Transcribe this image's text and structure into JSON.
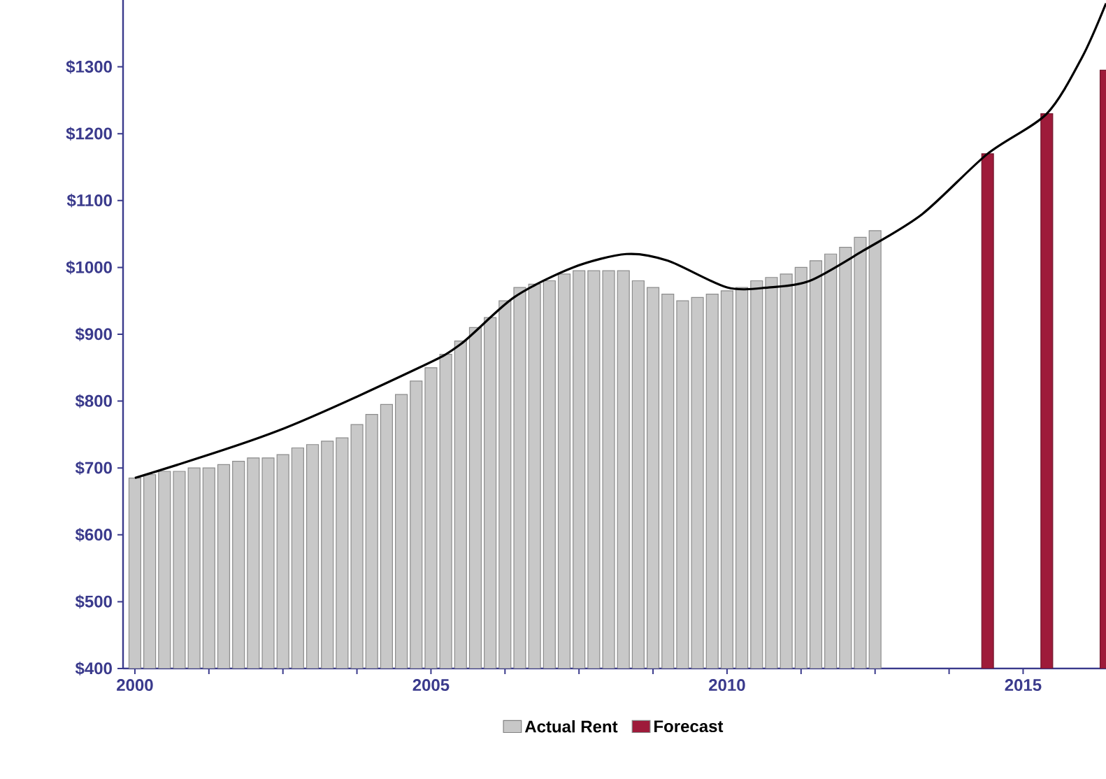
{
  "chart_data": {
    "type": "bar",
    "legend": "bottom",
    "xlim": [
      1999.8,
      2016.4
    ],
    "ylim": [
      400,
      1400
    ],
    "xticks": [
      2000,
      2005,
      2010,
      2015
    ],
    "yticks": [
      {
        "value": 400,
        "label": "$400"
      },
      {
        "value": 500,
        "label": "$500"
      },
      {
        "value": 600,
        "label": "$600"
      },
      {
        "value": 700,
        "label": "$700"
      },
      {
        "value": 800,
        "label": "$800"
      },
      {
        "value": 900,
        "label": "$900"
      },
      {
        "value": 1000,
        "label": "$1000"
      },
      {
        "value": 1100,
        "label": "$1100"
      },
      {
        "value": 1200,
        "label": "$1200"
      },
      {
        "value": 1300,
        "label": "$1300"
      }
    ],
    "series": [
      {
        "name": "Actual Rent",
        "color": "#c8c8c8",
        "x": [
          2000,
          2000.25,
          2000.5,
          2000.75,
          2001,
          2001.25,
          2001.5,
          2001.75,
          2002,
          2002.25,
          2002.5,
          2002.75,
          2003,
          2003.25,
          2003.5,
          2003.75,
          2004,
          2004.25,
          2004.5,
          2004.75,
          2005,
          2005.25,
          2005.5,
          2005.75,
          2006,
          2006.25,
          2006.5,
          2006.75,
          2007,
          2007.25,
          2007.5,
          2007.75,
          2008,
          2008.25,
          2008.5,
          2008.75,
          2009,
          2009.25,
          2009.5,
          2009.75,
          2010,
          2010.25,
          2010.5,
          2010.75,
          2011,
          2011.25,
          2011.5,
          2011.75,
          2012,
          2012.25,
          2012.5
        ],
        "values": [
          685,
          690,
          695,
          695,
          700,
          700,
          705,
          710,
          715,
          715,
          720,
          730,
          735,
          740,
          745,
          765,
          780,
          795,
          810,
          830,
          850,
          870,
          890,
          910,
          925,
          950,
          970,
          975,
          980,
          990,
          995,
          995,
          995,
          995,
          980,
          970,
          960,
          950,
          955,
          960,
          965,
          970,
          980,
          985,
          990,
          1000,
          1010,
          1020,
          1030,
          1045,
          1055
        ]
      },
      {
        "name": "Forecast",
        "color": "#9e1b3a",
        "x": [
          2014.4,
          2015.4,
          2016.4
        ],
        "values": [
          1170,
          1230,
          1295
        ]
      },
      {
        "type": "line",
        "color": "#000000",
        "x": [
          2000,
          2002.4,
          2004.8,
          2005.5,
          2006.4,
          2007.4,
          2008.3,
          2009,
          2010,
          2010.7,
          2011.4,
          2012.3,
          2013.3,
          2014.4,
          2015.4,
          2016,
          2016.4
        ],
        "values": [
          685,
          755,
          850,
          885,
          955,
          1000,
          1020,
          1010,
          970,
          970,
          980,
          1025,
          1080,
          1170,
          1230,
          1315,
          1395
        ]
      }
    ]
  }
}
